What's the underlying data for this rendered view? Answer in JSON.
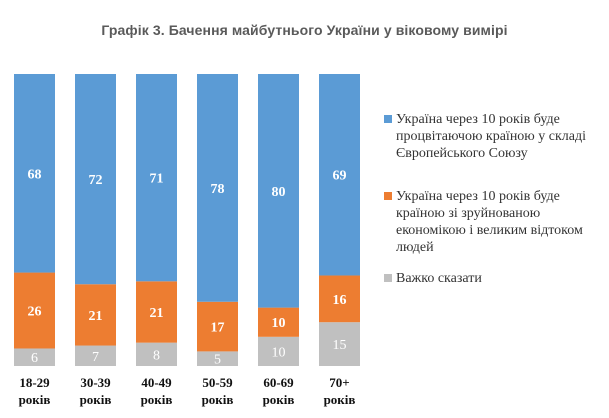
{
  "chart_data": {
    "type": "bar",
    "stacked": true,
    "title": "Графік 3. Бачення майбутнього України у віковому вимірі",
    "xlabel": "",
    "ylabel": "",
    "ylim": [
      0,
      100
    ],
    "legend_position": "right",
    "categories": [
      [
        "18-29",
        "років"
      ],
      [
        "30-39",
        "років"
      ],
      [
        "40-49",
        "років"
      ],
      [
        "50-59",
        "років"
      ],
      [
        "60-69",
        "років"
      ],
      [
        "70+",
        "років"
      ]
    ],
    "series": [
      {
        "name": "Важко сказати",
        "color": "#c0c0c0",
        "values": [
          6,
          7,
          8,
          5,
          10,
          15
        ]
      },
      {
        "name": "Україна через 10 років буде країною зі зруйнованою економікою і великим відтоком людей",
        "color": "#ed7d31",
        "values": [
          26,
          21,
          21,
          17,
          10,
          16
        ]
      },
      {
        "name": "Україна через 10 років буде процвітаючою країною у складі Європейського Союзу",
        "color": "#5b9bd5",
        "values": [
          68,
          72,
          71,
          78,
          80,
          69
        ]
      }
    ]
  },
  "legend": [
    {
      "color": "#5b9bd5",
      "lines": [
        "Україна через 10 років буде",
        "процвітаючою країною у складі",
        "Європейського Союзу"
      ]
    },
    {
      "color": "#ed7d31",
      "lines": [
        "Україна через 10 років буде",
        "країною зі зруйнованою",
        "економікою і великим відтоком",
        "людей"
      ]
    },
    {
      "color": "#c0c0c0",
      "lines": [
        "Важко сказати"
      ]
    }
  ]
}
